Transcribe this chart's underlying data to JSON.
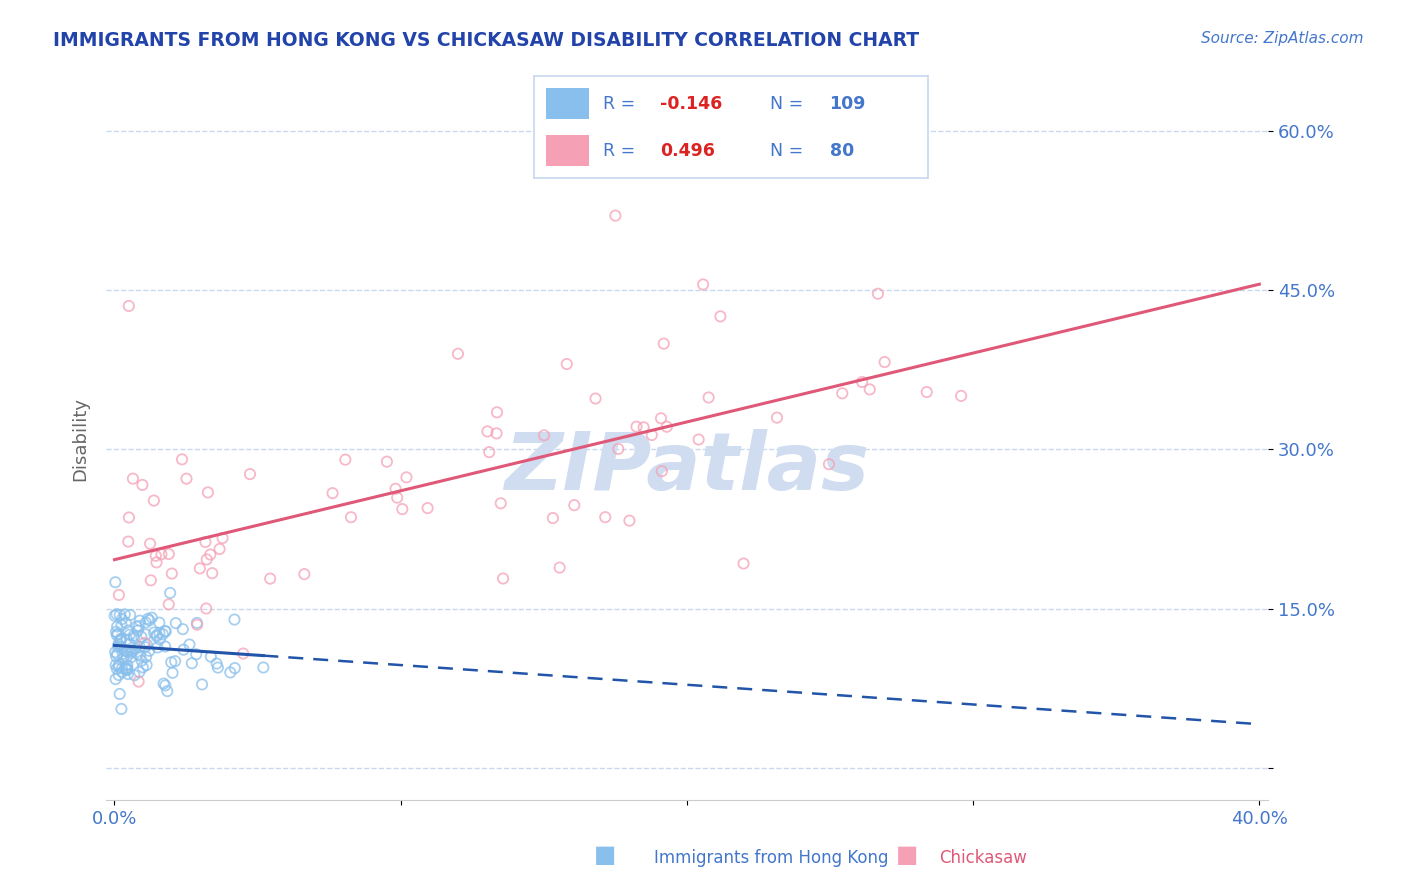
{
  "title": "IMMIGRANTS FROM HONG KONG VS CHICKASAW DISABILITY CORRELATION CHART",
  "source_text": "Source: ZipAtlas.com",
  "ylabel": "Disability",
  "xlim": [
    -0.003,
    0.403
  ],
  "ylim": [
    -0.03,
    0.65
  ],
  "yticks": [
    0.0,
    0.15,
    0.3,
    0.45,
    0.6
  ],
  "ytick_labels": [
    "",
    "15.0%",
    "30.0%",
    "45.0%",
    "60.0%"
  ],
  "xticks": [
    0.0,
    0.1,
    0.2,
    0.3,
    0.4
  ],
  "xtick_labels": [
    "0.0%",
    "",
    "",
    "",
    "40.0%"
  ],
  "blue_R": -0.146,
  "blue_N": 109,
  "pink_R": 0.496,
  "pink_N": 80,
  "blue_color": "#89BFEC",
  "pink_color": "#F5A0B5",
  "blue_line_color": "#2255AA",
  "pink_line_color": "#E05878",
  "title_color": "#2244AA",
  "axis_color": "#4477CC",
  "grid_color": "#C8D8EE",
  "watermark_color": "#D0DCF0",
  "background_color": "#FFFFFF",
  "legend_text_color": "#4477CC",
  "legend_r_color": "#DD2222",
  "blue_seed": 42,
  "pink_seed": 123,
  "blue_intercept": 0.115,
  "blue_slope": -0.3,
  "pink_intercept": 0.185,
  "pink_slope": 0.7
}
